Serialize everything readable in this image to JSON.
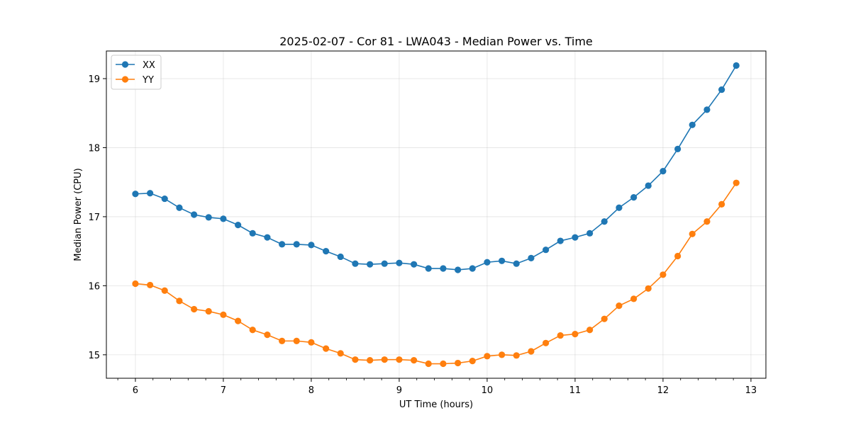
{
  "chart_data": {
    "type": "line",
    "title": "2025-02-07 - Cor 81 - LWA043 - Median Power vs. Time",
    "xlabel": "UT Time (hours)",
    "ylabel": "Median Power (CPU)",
    "xlim": [
      5.67,
      13.17
    ],
    "ylim": [
      14.66,
      19.4
    ],
    "xticks": [
      6,
      7,
      8,
      9,
      10,
      11,
      12,
      13
    ],
    "yticks": [
      15,
      16,
      17,
      18,
      19
    ],
    "grid": true,
    "legend_position": "top-left",
    "x": [
      6.0,
      6.167,
      6.333,
      6.5,
      6.667,
      6.833,
      7.0,
      7.167,
      7.333,
      7.5,
      7.667,
      7.833,
      8.0,
      8.167,
      8.333,
      8.5,
      8.667,
      8.833,
      9.0,
      9.167,
      9.333,
      9.5,
      9.667,
      9.833,
      10.0,
      10.167,
      10.333,
      10.5,
      10.667,
      10.833,
      11.0,
      11.167,
      11.333,
      11.5,
      11.667,
      11.833,
      12.0,
      12.167,
      12.333,
      12.5,
      12.667,
      12.833
    ],
    "series": [
      {
        "name": "XX",
        "color": "#1f77b4",
        "values": [
          17.33,
          17.34,
          17.26,
          17.13,
          17.03,
          16.99,
          16.97,
          16.88,
          16.76,
          16.7,
          16.6,
          16.6,
          16.59,
          16.5,
          16.42,
          16.32,
          16.31,
          16.32,
          16.33,
          16.31,
          16.25,
          16.25,
          16.23,
          16.25,
          16.34,
          16.36,
          16.32,
          16.4,
          16.52,
          16.65,
          16.7,
          16.76,
          16.93,
          17.13,
          17.28,
          17.45,
          17.66,
          17.98,
          18.33,
          18.55,
          18.84,
          19.19
        ]
      },
      {
        "name": "YY",
        "color": "#ff7f0e",
        "values": [
          16.03,
          16.01,
          15.93,
          15.78,
          15.66,
          15.63,
          15.58,
          15.49,
          15.36,
          15.29,
          15.2,
          15.2,
          15.18,
          15.09,
          15.02,
          14.93,
          14.92,
          14.93,
          14.93,
          14.92,
          14.87,
          14.87,
          14.88,
          14.91,
          14.98,
          15.0,
          14.99,
          15.05,
          15.17,
          15.28,
          15.3,
          15.36,
          15.52,
          15.71,
          15.81,
          15.96,
          16.16,
          16.43,
          16.75,
          16.93,
          17.18,
          17.49
        ]
      }
    ]
  }
}
